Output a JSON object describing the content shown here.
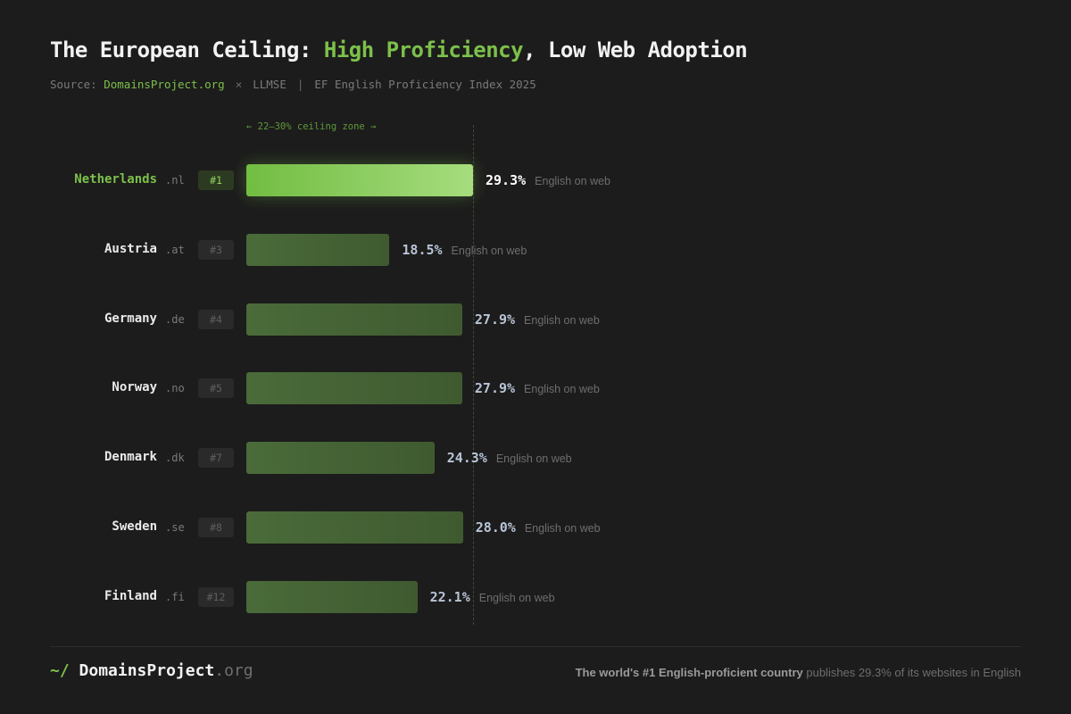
{
  "header": {
    "title_prefix": "The European Ceiling: ",
    "title_highlight": "High Proficiency",
    "title_suffix": ", Low Web Adoption",
    "source_label": "Source: ",
    "source_link": "DomainsProject.org",
    "source_sep": "×",
    "source_llmse": "LLMSE",
    "source_pipe": "|",
    "source_index": "EF English Proficiency Index 2025"
  },
  "colors": {
    "accent": "#7cc04a",
    "background": "#1c1c1c",
    "bar": "#4a6b3a",
    "bar_top_start": "#72bd42",
    "bar_top_end": "#a6dc7e"
  },
  "chart_data": {
    "type": "bar",
    "orientation": "horizontal",
    "annotation": "← 22–30% ceiling zone →",
    "ceiling_value": 29.3,
    "value_suffix": "English on web",
    "categories": [
      "Netherlands",
      "Austria",
      "Germany",
      "Norway",
      "Denmark",
      "Sweden",
      "Finland"
    ],
    "tlds": [
      ".nl",
      ".at",
      ".de",
      ".no",
      ".dk",
      ".se",
      ".fi"
    ],
    "ranks": [
      "#1",
      "#3",
      "#4",
      "#5",
      "#7",
      "#8",
      "#12"
    ],
    "values": [
      29.3,
      18.5,
      27.9,
      27.9,
      24.3,
      28.0,
      22.1
    ],
    "value_labels": [
      "29.3%",
      "18.5%",
      "27.9%",
      "27.9%",
      "24.3%",
      "28.0%",
      "22.1%"
    ],
    "xlim": [
      0,
      29.3
    ]
  },
  "footer": {
    "brand_prompt": "~/",
    "brand_name": "DomainsProject",
    "brand_tld": ".org",
    "tagline_bold": "The world's #1 English-proficient country",
    "tagline_rest": " publishes 29.3% of its websites in English"
  }
}
